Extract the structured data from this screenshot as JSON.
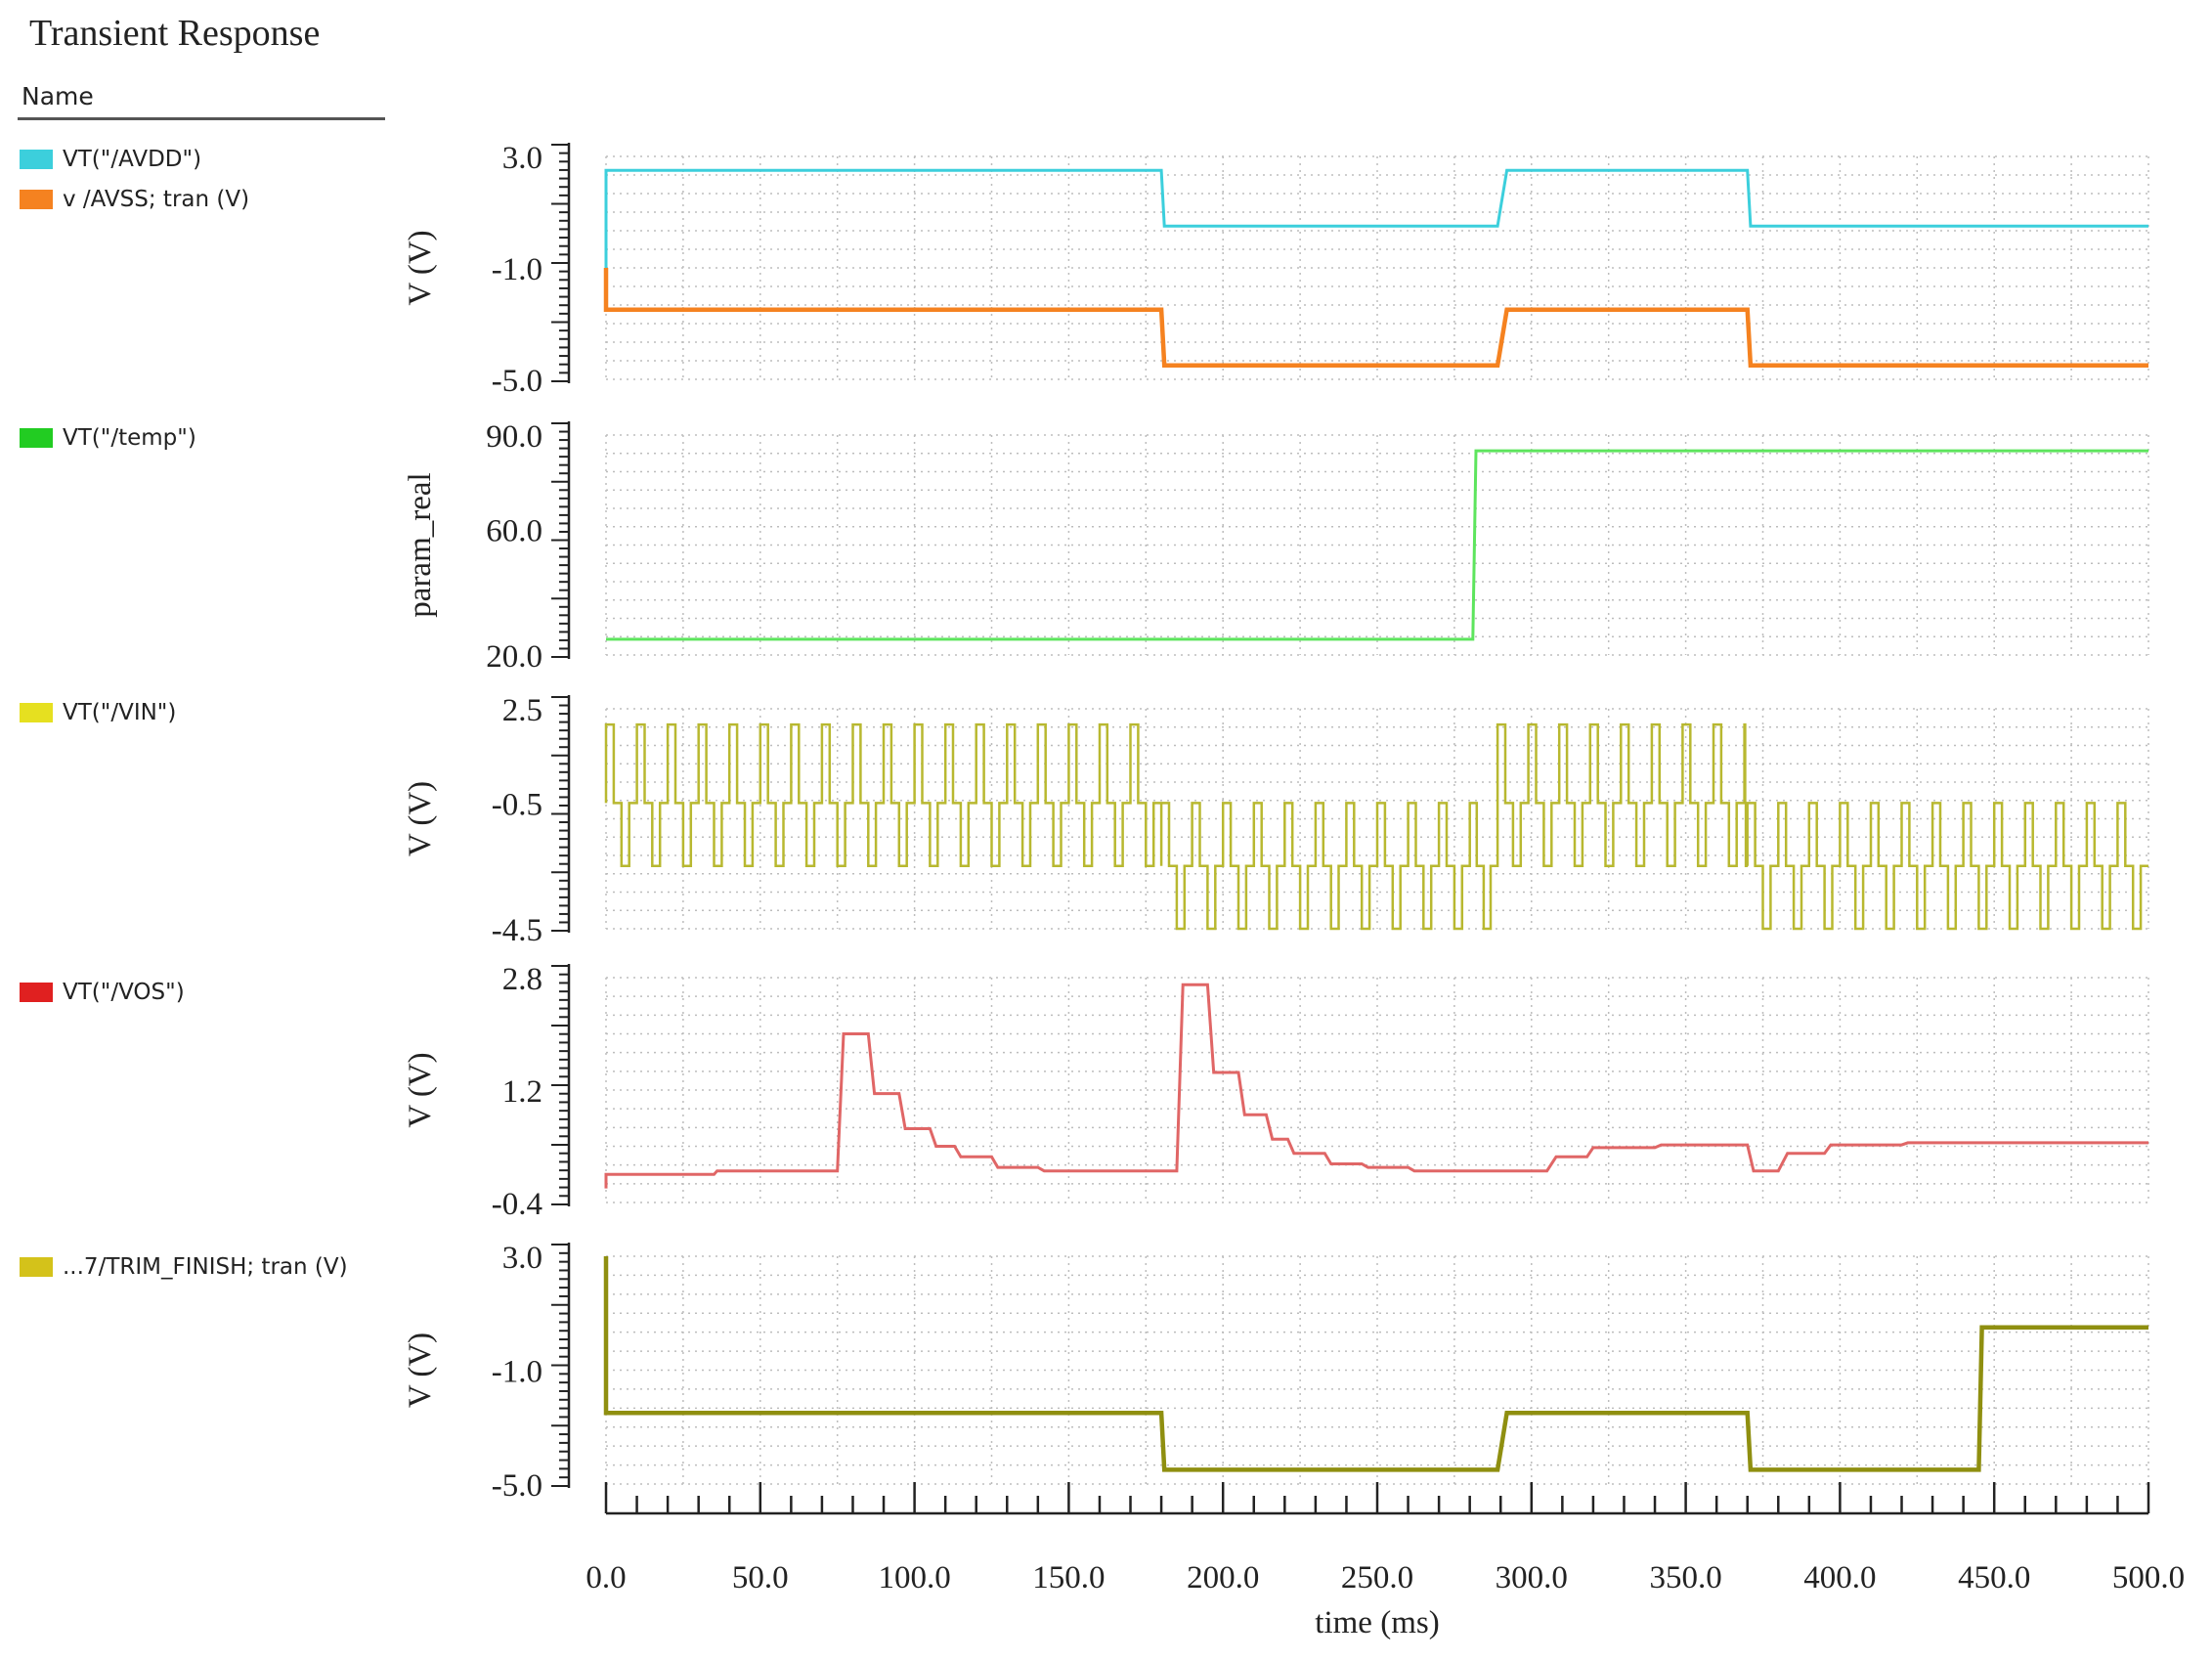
{
  "title": "Transient Response",
  "legend_header": "Name",
  "chart_data": {
    "type": "line",
    "title": "Transient Response",
    "xlabel": "time (ms)",
    "xlim": [
      0,
      500
    ],
    "x_ticks": [
      0,
      50,
      100,
      150,
      200,
      250,
      300,
      350,
      400,
      450,
      500
    ],
    "x_tick_labels": [
      "0.0",
      "50.0",
      "100.0",
      "150.0",
      "200.0",
      "250.0",
      "300.0",
      "350.0",
      "400.0",
      "450.0",
      "500.0"
    ],
    "grid": true,
    "panels": [
      {
        "ylabel": "V (V)",
        "ylim": [
          -5.0,
          3.0
        ],
        "y_ticks": [
          3.0,
          -1.0,
          -5.0
        ],
        "y_tick_labels": [
          "3.0",
          "-1.0",
          "-5.0"
        ],
        "series": [
          {
            "name": "VT(\"/AVDD\")",
            "color": "#3ccfdc",
            "points": [
              [
                0,
                -1.0
              ],
              [
                0,
                2.5
              ],
              [
                180,
                2.5
              ],
              [
                181,
                0.5
              ],
              [
                289,
                0.5
              ],
              [
                292,
                2.5
              ],
              [
                370,
                2.5
              ],
              [
                371,
                0.5
              ],
              [
                500,
                0.5
              ]
            ]
          },
          {
            "name": "v /AVSS; tran (V)",
            "color": "#f58220",
            "points": [
              [
                0,
                -1.0
              ],
              [
                0,
                -2.5
              ],
              [
                180,
                -2.5
              ],
              [
                181,
                -4.5
              ],
              [
                289,
                -4.5
              ],
              [
                292,
                -2.5
              ],
              [
                370,
                -2.5
              ],
              [
                371,
                -4.5
              ],
              [
                500,
                -4.5
              ]
            ]
          }
        ]
      },
      {
        "ylabel": "param_real",
        "ylim": [
          20.0,
          90.0
        ],
        "y_ticks": [
          90.0,
          60.0,
          20.0
        ],
        "y_tick_labels": [
          "90.0",
          "60.0",
          "20.0"
        ],
        "series": [
          {
            "name": "VT(\"/temp\")",
            "color": "#5de55d",
            "points": [
              [
                0,
                25
              ],
              [
                281,
                25
              ],
              [
                282,
                85
              ],
              [
                500,
                85
              ]
            ]
          }
        ]
      },
      {
        "ylabel": "V (V)",
        "ylim": [
          -4.5,
          2.5
        ],
        "y_ticks": [
          2.5,
          -0.5,
          -4.5
        ],
        "y_tick_labels": [
          "2.5",
          "-0.5",
          "-4.5"
        ],
        "series": [
          {
            "name": "VT(\"/VIN\")",
            "color": "#b8b830",
            "pattern": "square_wave",
            "period_ms": 10,
            "segments": [
              {
                "from": 0,
                "to": 180,
                "high": 2.0,
                "mid": -0.5,
                "low": -2.5
              },
              {
                "from": 180,
                "to": 289,
                "high": -0.5,
                "mid": -2.5,
                "low": -4.5
              },
              {
                "from": 289,
                "to": 370,
                "high": 2.0,
                "mid": -0.5,
                "low": -2.5
              },
              {
                "from": 370,
                "to": 500,
                "high": -0.5,
                "mid": -2.5,
                "low": -4.5
              }
            ]
          }
        ]
      },
      {
        "ylabel": "V (V)",
        "ylim": [
          -0.4,
          2.8
        ],
        "y_ticks": [
          2.8,
          1.2,
          -0.4
        ],
        "y_tick_labels": [
          "2.8",
          "1.2",
          "-0.4"
        ],
        "series": [
          {
            "name": "VT(\"/VOS\")",
            "color": "#e06666",
            "points": [
              [
                0,
                -0.2
              ],
              [
                0,
                0.0
              ],
              [
                35,
                0.0
              ],
              [
                36,
                0.05
              ],
              [
                75,
                0.05
              ],
              [
                77,
                2.0
              ],
              [
                85,
                2.0
              ],
              [
                87,
                1.15
              ],
              [
                95,
                1.15
              ],
              [
                97,
                0.65
              ],
              [
                105,
                0.65
              ],
              [
                107,
                0.4
              ],
              [
                113,
                0.4
              ],
              [
                115,
                0.25
              ],
              [
                125,
                0.25
              ],
              [
                127,
                0.1
              ],
              [
                140,
                0.1
              ],
              [
                142,
                0.05
              ],
              [
                185,
                0.05
              ],
              [
                187,
                2.7
              ],
              [
                195,
                2.7
              ],
              [
                197,
                1.45
              ],
              [
                205,
                1.45
              ],
              [
                207,
                0.85
              ],
              [
                214,
                0.85
              ],
              [
                216,
                0.5
              ],
              [
                221,
                0.5
              ],
              [
                223,
                0.3
              ],
              [
                233,
                0.3
              ],
              [
                235,
                0.15
              ],
              [
                245,
                0.15
              ],
              [
                247,
                0.1
              ],
              [
                260,
                0.1
              ],
              [
                262,
                0.05
              ],
              [
                305,
                0.05
              ],
              [
                308,
                0.25
              ],
              [
                318,
                0.25
              ],
              [
                320,
                0.38
              ],
              [
                340,
                0.38
              ],
              [
                342,
                0.42
              ],
              [
                370,
                0.42
              ],
              [
                372,
                0.05
              ],
              [
                380,
                0.05
              ],
              [
                383,
                0.3
              ],
              [
                395,
                0.3
              ],
              [
                397,
                0.42
              ],
              [
                420,
                0.42
              ],
              [
                422,
                0.45
              ],
              [
                500,
                0.45
              ]
            ]
          }
        ]
      },
      {
        "ylabel": "V (V)",
        "ylim": [
          -5.0,
          3.0
        ],
        "y_ticks": [
          3.0,
          -1.0,
          -5.0
        ],
        "y_tick_labels": [
          "3.0",
          "-1.0",
          "-5.0"
        ],
        "series": [
          {
            "name": "...7/TRIM_FINISH; tran (V)",
            "color": "#8f8f10",
            "legend_color": "#d4c21a",
            "points": [
              [
                0,
                3.0
              ],
              [
                0,
                -2.5
              ],
              [
                180,
                -2.5
              ],
              [
                181,
                -4.5
              ],
              [
                289,
                -4.5
              ],
              [
                292,
                -2.5
              ],
              [
                370,
                -2.5
              ],
              [
                371,
                -4.5
              ],
              [
                445,
                -4.5
              ],
              [
                446,
                0.5
              ],
              [
                500,
                0.5
              ]
            ]
          }
        ]
      }
    ]
  }
}
